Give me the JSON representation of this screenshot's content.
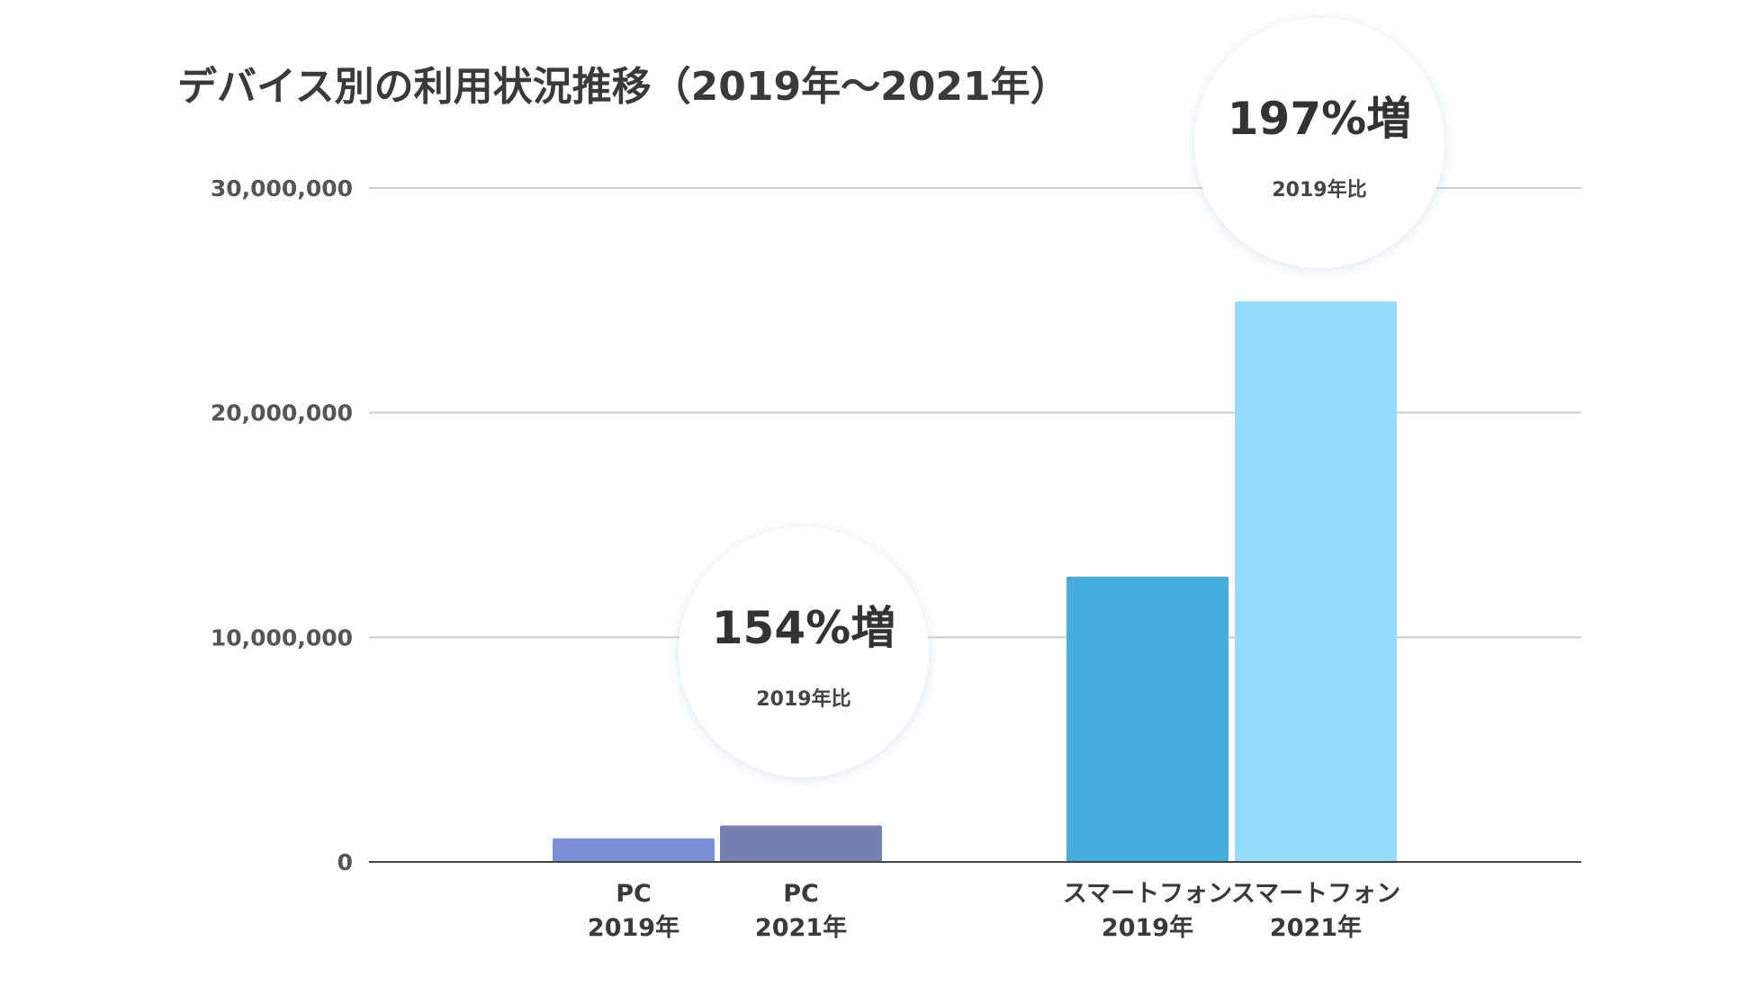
{
  "chart_data": {
    "type": "bar",
    "title": "デバイス別の利用状況推移（2019年〜2021年）",
    "xlabel": "",
    "ylabel": "",
    "ylim": [
      0,
      30000000
    ],
    "y_ticks": [
      "0",
      "10,000,000",
      "20,000,000",
      "30,000,000"
    ],
    "y_tick_values": [
      0,
      10000000,
      20000000,
      30000000
    ],
    "grid": true,
    "groups": [
      {
        "bars": [
          {
            "label_line1": "PC",
            "label_line2": "2019年",
            "value": 1050000,
            "color": "#7a8fd6"
          },
          {
            "label_line1": "PC",
            "label_line2": "2021年",
            "value": 1620000,
            "color": "#7581b3"
          }
        ],
        "badge": {
          "main": "154%増",
          "sub": "2019年比"
        }
      },
      {
        "bars": [
          {
            "label_line1": "スマートフォン",
            "label_line2": "2019年",
            "value": 12700000,
            "color": "#45aedc"
          },
          {
            "label_line1": "スマートフォン",
            "label_line2": "2021年",
            "value": 24950000,
            "color": "#93dcfc"
          }
        ],
        "badge": {
          "main": "197%増",
          "sub": "2019年比"
        }
      }
    ]
  }
}
